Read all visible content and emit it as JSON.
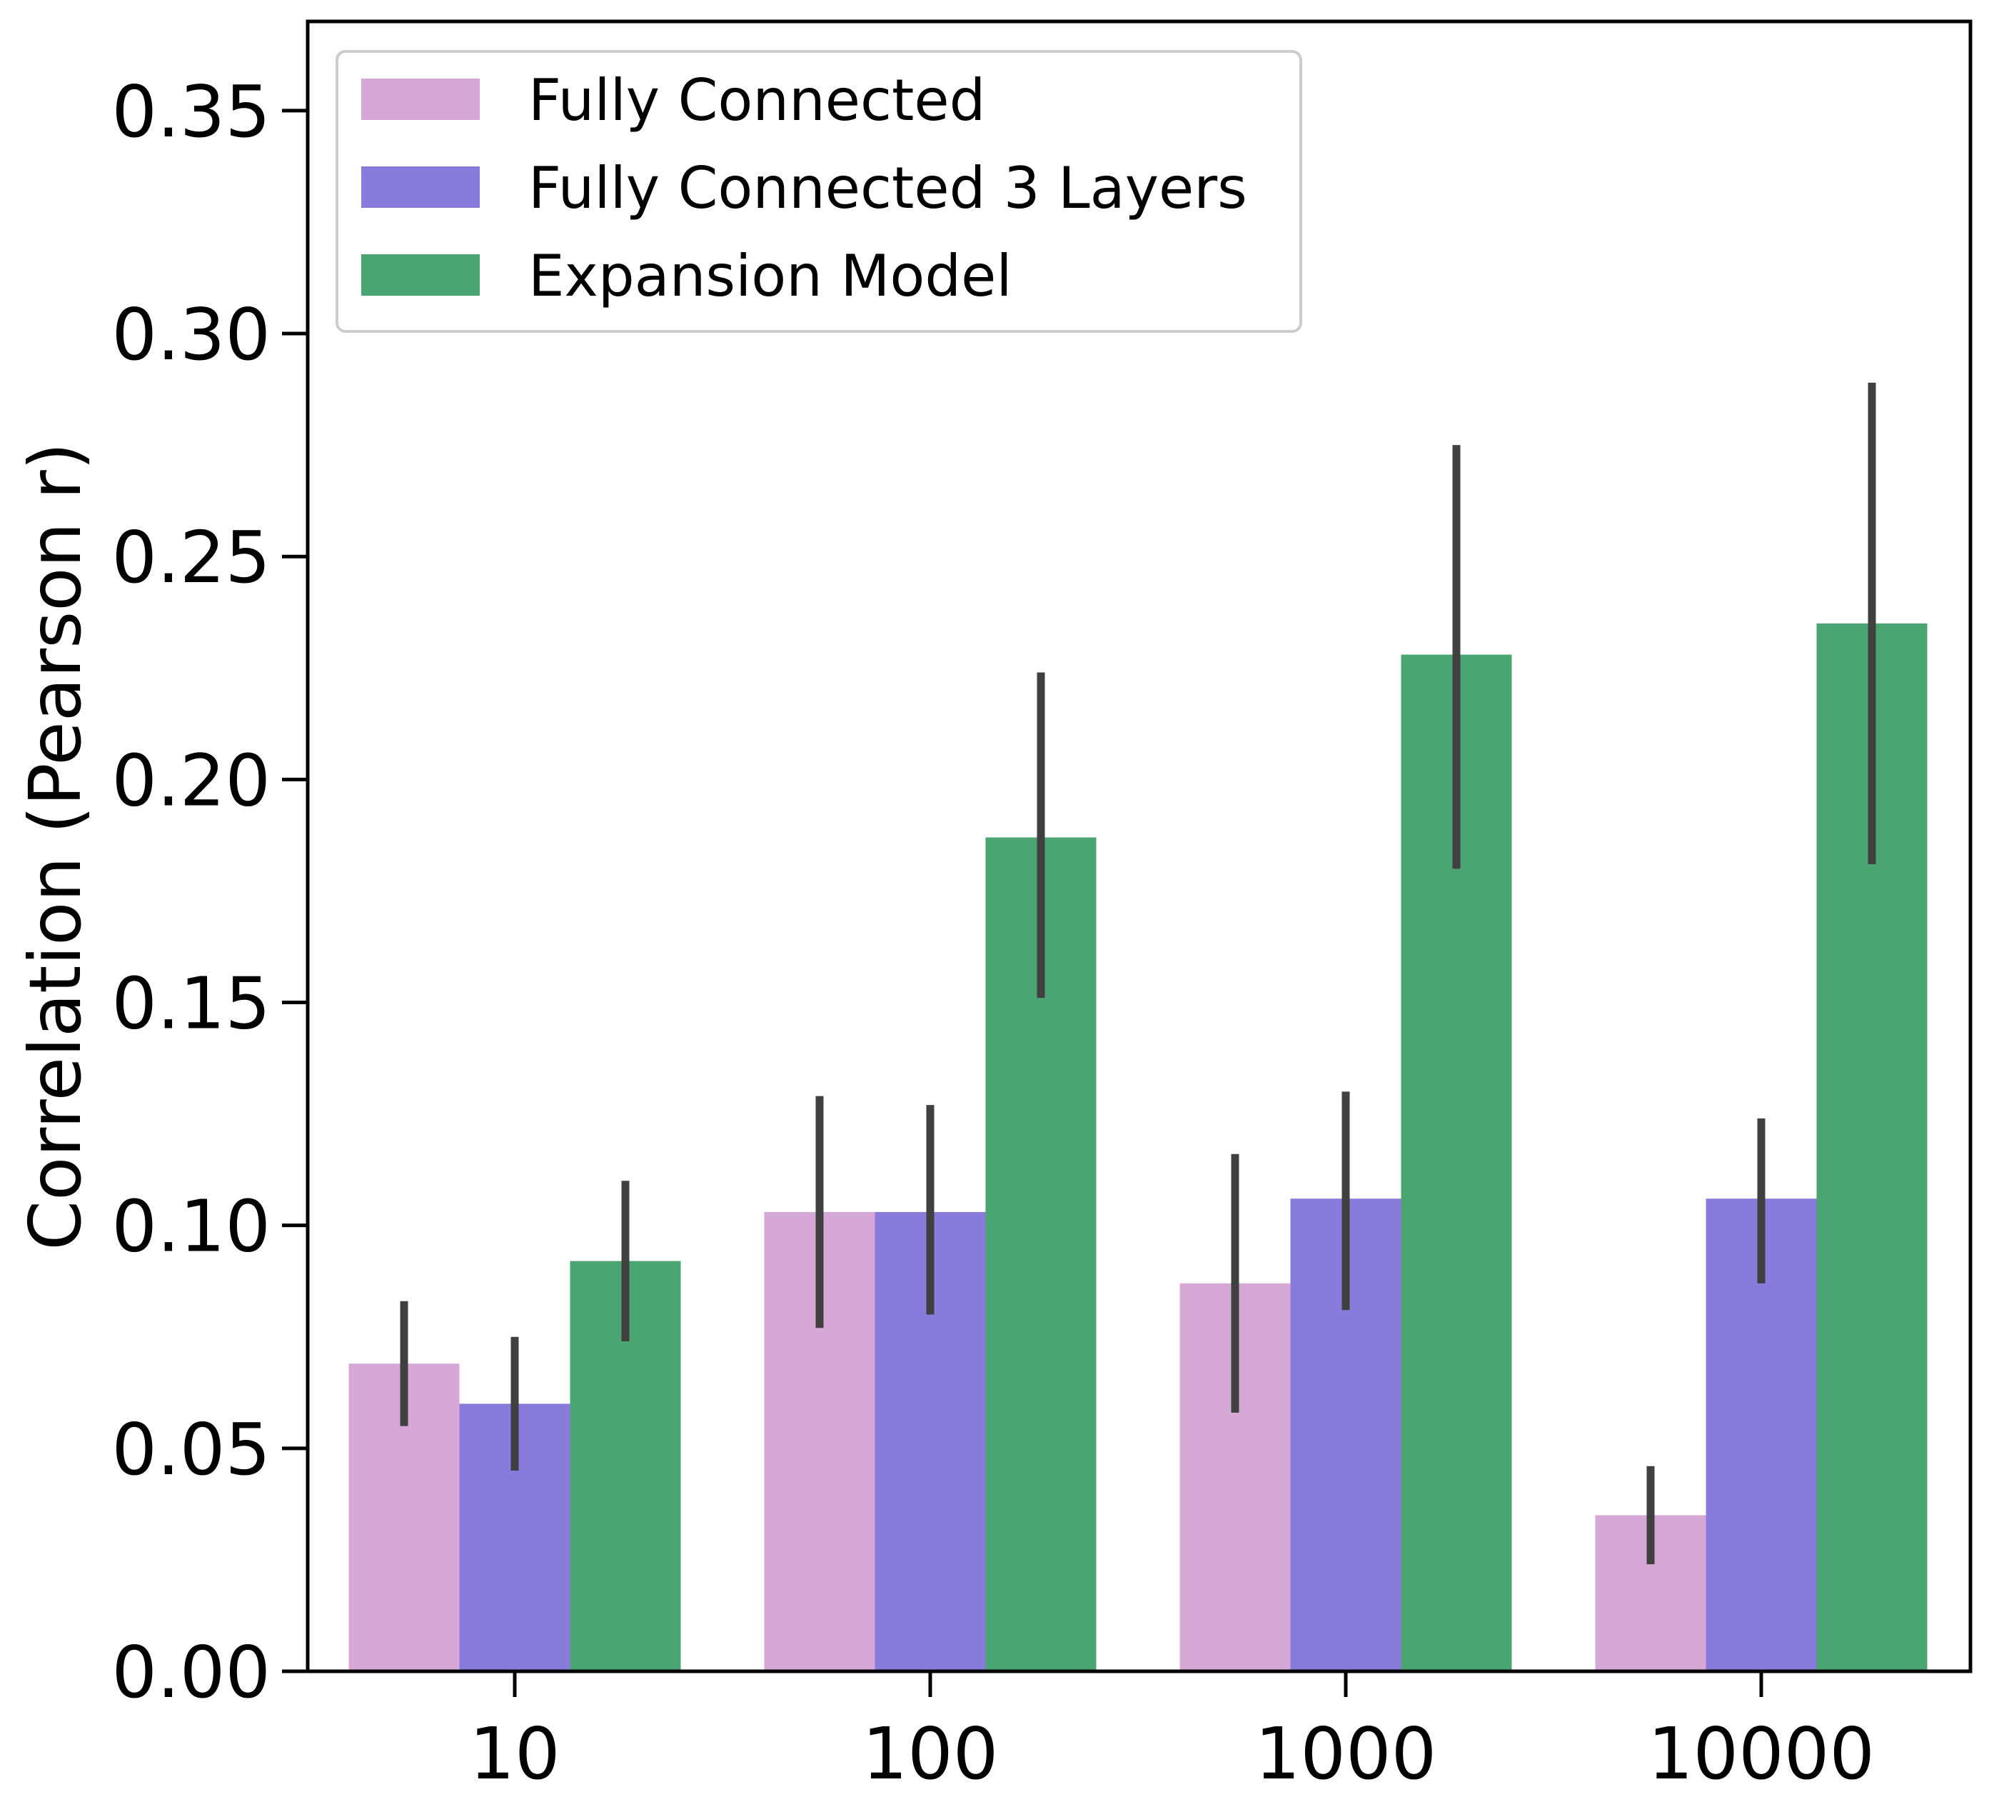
{
  "chart_data": {
    "type": "bar",
    "title": "",
    "xlabel": "",
    "ylabel": "Correlation (Pearson r)",
    "ylim": [
      0,
      0.37
    ],
    "yticks": [
      "0.00",
      "0.05",
      "0.10",
      "0.15",
      "0.20",
      "0.25",
      "0.30",
      "0.35"
    ],
    "categories": [
      "10",
      "100",
      "1000",
      "10000"
    ],
    "legend_position": "top-left",
    "grid": false,
    "series": [
      {
        "name": "Fully Connected",
        "color": "#d5a8d5",
        "values": [
          0.069,
          0.103,
          0.087,
          0.035
        ],
        "ci_low": [
          0.055,
          0.077,
          0.058,
          0.024
        ],
        "ci_high": [
          0.083,
          0.129,
          0.116,
          0.046
        ]
      },
      {
        "name": "Fully Connected 3 Layers",
        "color": "#897bdc",
        "values": [
          0.06,
          0.103,
          0.106,
          0.106
        ],
        "ci_low": [
          0.045,
          0.08,
          0.081,
          0.087
        ],
        "ci_high": [
          0.075,
          0.127,
          0.13,
          0.124
        ]
      },
      {
        "name": "Expansion Model",
        "color": "#4ba572",
        "values": [
          0.092,
          0.187,
          0.228,
          0.235
        ],
        "ci_low": [
          0.074,
          0.151,
          0.18,
          0.181
        ],
        "ci_high": [
          0.11,
          0.224,
          0.275,
          0.289
        ]
      }
    ],
    "errorbar_color": "#404040"
  }
}
